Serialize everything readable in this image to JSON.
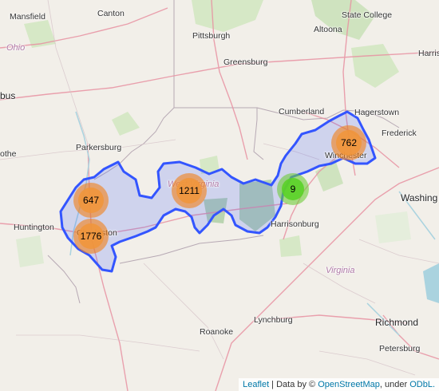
{
  "attribution": {
    "leaflet": "Leaflet",
    "sep1": " | Data by © ",
    "osm": "OpenStreetMap",
    "sep2": ", under ",
    "odbl": "ODbL."
  },
  "places": {
    "mansfield": "Mansfield",
    "canton": "Canton",
    "state_college": "State College",
    "ohio": "Ohio",
    "pittsburgh": "Pittsburgh",
    "altoona": "Altoona",
    "harrisburg": "Harris",
    "greensburg": "Greensburg",
    "columbus": "bus",
    "cumberland": "Cumberland",
    "hagerstown": "Hagerstown",
    "frederick": "Frederick",
    "parkersburg": "Parkersburg",
    "winchester": "Winchester",
    "athens": "othe",
    "west_virginia": "West Virginia",
    "washington": "Washing",
    "huntington": "Huntington",
    "charleston": "Charleston",
    "harrisonburg": "Harrisonburg",
    "virginia": "Virginia",
    "roanoke": "Roanoke",
    "lynchburg": "Lynchburg",
    "richmond": "Richmond",
    "petersburg": "Petersburg"
  },
  "clusters": [
    {
      "count": "647",
      "color": "orange"
    },
    {
      "count": "1776",
      "color": "orange"
    },
    {
      "count": "1211",
      "color": "orange"
    },
    {
      "count": "9",
      "color": "green"
    },
    {
      "count": "762",
      "color": "orange"
    }
  ],
  "colors": {
    "polygon_stroke": "#3355ff",
    "polygon_fill": "#3355ff",
    "cluster_large": "#f18017",
    "cluster_small": "#6ecc39"
  }
}
